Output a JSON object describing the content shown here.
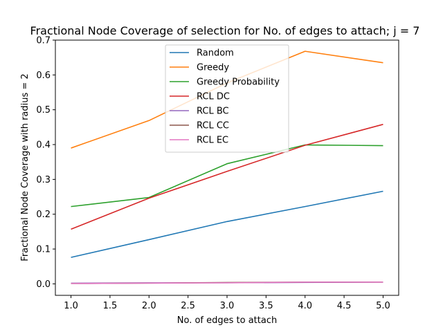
{
  "chart_data": {
    "type": "line",
    "title": "Fractional Node Coverage of selection for No. of edges to attach; j = 7",
    "xlabel": "No. of edges to attach",
    "ylabel": "Fractional Node Coverage with radius = 2",
    "xlim": [
      0.8,
      5.2
    ],
    "ylim": [
      -0.033,
      0.7
    ],
    "xticks": [
      "1.0",
      "1.5",
      "2.0",
      "2.5",
      "3.0",
      "3.5",
      "4.0",
      "4.5",
      "5.0"
    ],
    "yticks": [
      "0.0",
      "0.1",
      "0.2",
      "0.3",
      "0.4",
      "0.5",
      "0.6",
      "0.7"
    ],
    "grid": false,
    "legend_position": "top-center",
    "x": [
      1,
      2,
      3,
      4,
      5
    ],
    "series": [
      {
        "name": "Random",
        "color": "#1f77b4",
        "values": [
          0.076,
          0.127,
          0.179,
          0.222,
          0.266
        ]
      },
      {
        "name": "Greedy",
        "color": "#ff7f0e",
        "values": [
          0.39,
          0.469,
          0.577,
          0.668,
          0.635
        ]
      },
      {
        "name": "Greedy Probability",
        "color": "#2ca02c",
        "values": [
          0.222,
          0.248,
          0.345,
          0.399,
          0.397
        ]
      },
      {
        "name": "RCL DC",
        "color": "#d62728",
        "values": [
          0.157,
          0.246,
          0.323,
          0.398,
          0.458
        ]
      },
      {
        "name": "RCL BC",
        "color": "#9467bd",
        "values": [
          0.002,
          0.003,
          0.003,
          0.004,
          0.005
        ]
      },
      {
        "name": "RCL CC",
        "color": "#8c564b",
        "values": [
          0.001,
          0.002,
          0.004,
          0.005,
          0.005
        ]
      },
      {
        "name": "RCL EC",
        "color": "#e377c2",
        "values": [
          0.001,
          0.002,
          0.003,
          0.005,
          0.005
        ]
      }
    ]
  }
}
